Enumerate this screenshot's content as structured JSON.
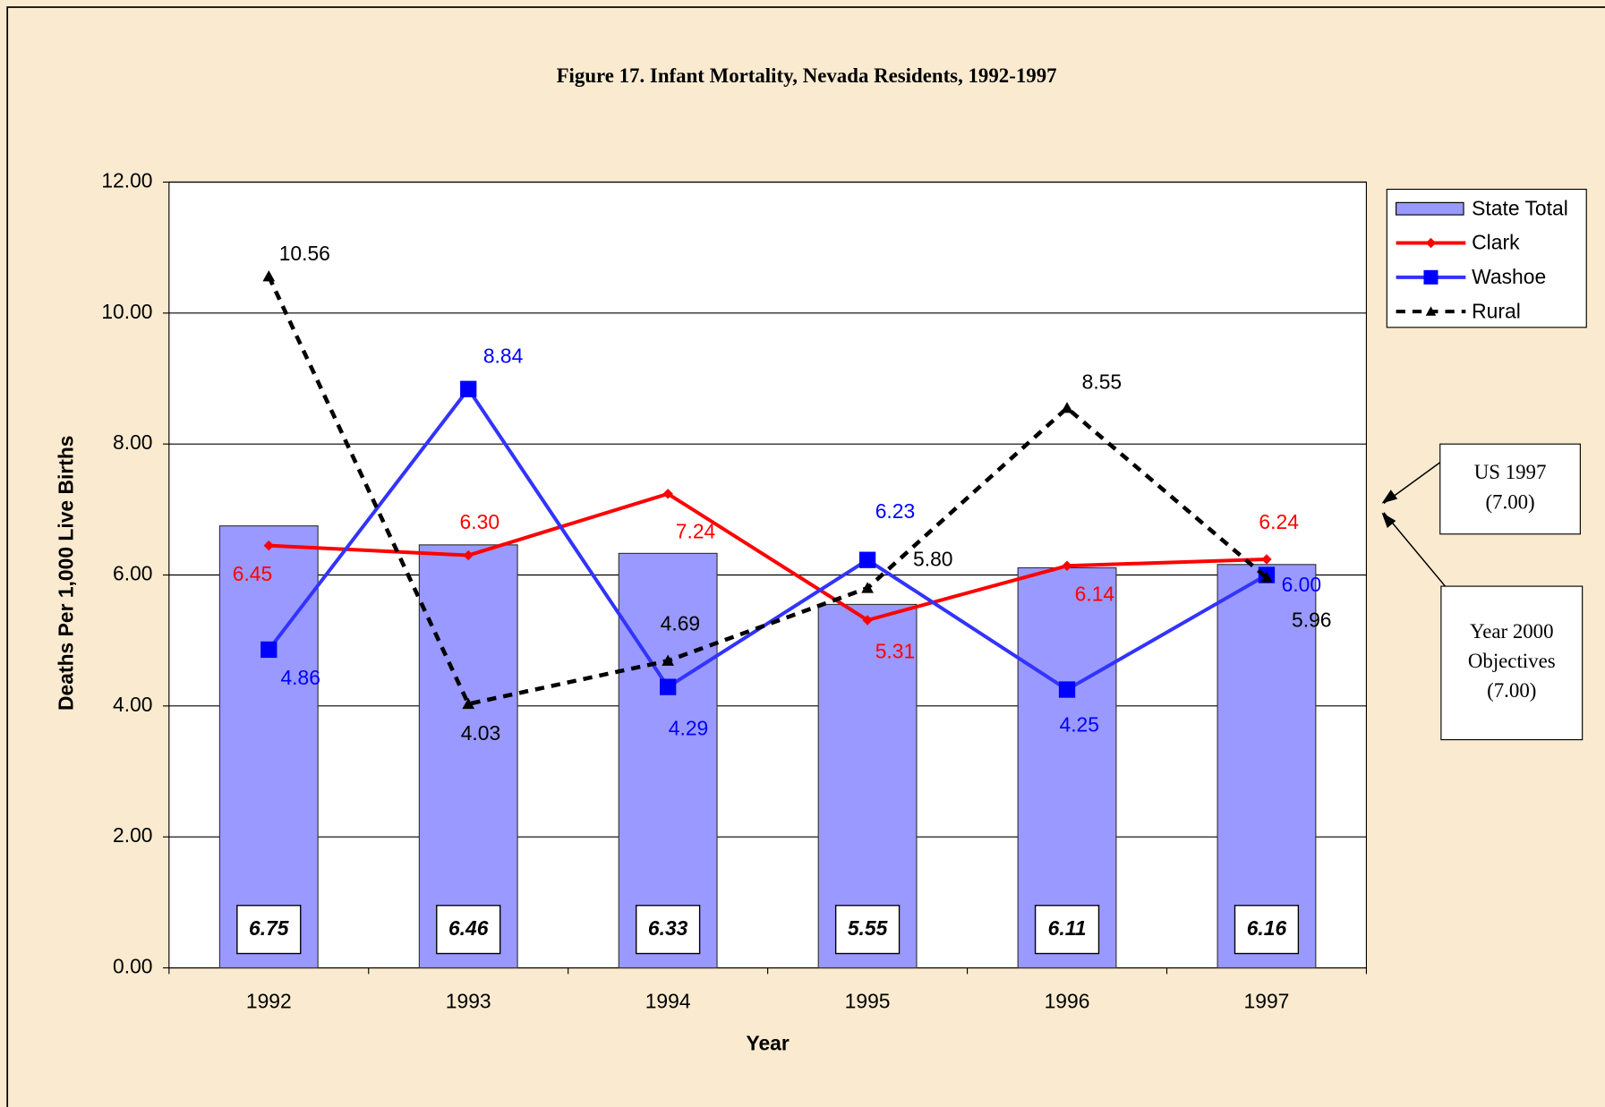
{
  "chart_data": {
    "type": "bar_line",
    "title": "Figure 17. Infant Mortality, Nevada Residents, 1992-1997",
    "x_label": "Year",
    "y_label": "Deaths Per 1,000 Live Births",
    "categories": [
      "1992",
      "1993",
      "1994",
      "1995",
      "1996",
      "1997"
    ],
    "series": [
      {
        "name": "State Total",
        "type": "bar",
        "color": "#9999ff",
        "values": [
          6.75,
          6.46,
          6.33,
          5.55,
          6.11,
          6.16
        ]
      },
      {
        "name": "Clark",
        "type": "line",
        "color": "#ff0000",
        "marker": "diamond",
        "values": [
          6.45,
          6.3,
          7.24,
          5.31,
          6.14,
          6.24
        ],
        "value_labels": [
          "6.45",
          "6.30",
          "7.24",
          "5.31",
          "6.14",
          "6.24"
        ]
      },
      {
        "name": "Washoe",
        "type": "line",
        "color": "#3333ff",
        "marker": "square",
        "values": [
          4.86,
          8.84,
          4.29,
          6.23,
          4.25,
          6.0
        ],
        "value_labels": [
          "4.86",
          "8.84",
          "4.29",
          "6.23",
          "4.25",
          "6.00"
        ]
      },
      {
        "name": "Rural",
        "type": "line",
        "color": "#000000",
        "marker": "triangle",
        "dashed": true,
        "values": [
          10.56,
          4.03,
          4.69,
          5.8,
          8.55,
          5.96
        ],
        "value_labels": [
          "10.56",
          "4.03",
          "4.69",
          "5.80",
          "8.55",
          "5.96"
        ]
      }
    ],
    "ylim": [
      0,
      12
    ],
    "yticks": [
      {
        "value": 0,
        "label": "0.00"
      },
      {
        "value": 2,
        "label": "2.00"
      },
      {
        "value": 4,
        "label": "4.00"
      },
      {
        "value": 6,
        "label": "6.00"
      },
      {
        "value": 8,
        "label": "8.00"
      },
      {
        "value": 10,
        "label": "10.00"
      },
      {
        "value": 12,
        "label": "12.00"
      }
    ],
    "grid": true,
    "legend": "upper right",
    "annotations": [
      {
        "lines": [
          "US 1997",
          "(7.00)"
        ],
        "value": 7
      },
      {
        "lines": [
          "Year 2000",
          "Objectives",
          "(7.00)"
        ],
        "value": 7
      }
    ]
  }
}
